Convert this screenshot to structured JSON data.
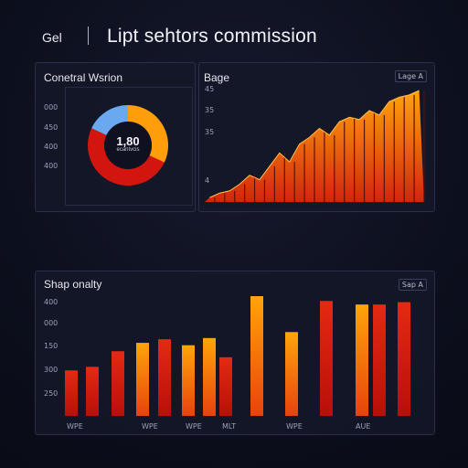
{
  "header": {
    "brand": "Gel",
    "title": "Lipt sehtors commission"
  },
  "panel_donut": {
    "title": "Conetral Wsrion",
    "ticks": [
      "000",
      "450",
      "400",
      "400"
    ],
    "center_value": "1,80",
    "center_label": "ecantvcis"
  },
  "panel_area": {
    "title": "Bage",
    "badge": "Lage A",
    "ticks": [
      "45",
      "35",
      "35",
      "4"
    ]
  },
  "panel_bars": {
    "title": "Shap onalty",
    "badge": "Sap A",
    "ticks": [
      "400",
      "000",
      "150",
      "300",
      "250"
    ],
    "xlabels": [
      "WPE",
      "WPE",
      "WPE",
      "MLT",
      "WPE",
      "AUE"
    ]
  },
  "colors": {
    "orange": "#ff9d0a",
    "red": "#d2160f",
    "blue": "#6aa8f0",
    "panel_border": "#2a2e48"
  },
  "chart_data": [
    {
      "type": "pie",
      "title": "Conetral Wsrion",
      "slices": [
        {
          "label": "orange",
          "value": 32,
          "color": "#ff9d0a"
        },
        {
          "label": "red",
          "value": 50,
          "color": "#d2160f"
        },
        {
          "label": "blue",
          "value": 18,
          "color": "#6aa8f0"
        }
      ],
      "center_value": "1,80"
    },
    {
      "type": "area",
      "title": "Bage",
      "ylim": [
        0,
        50
      ],
      "values": [
        2,
        4,
        5,
        8,
        12,
        10,
        16,
        22,
        18,
        26,
        29,
        33,
        30,
        36,
        38,
        37,
        41,
        39,
        45,
        47,
        48,
        50
      ]
    },
    {
      "type": "bar",
      "title": "Shap onalty",
      "ylim": [
        0,
        100
      ],
      "values": [
        38,
        41,
        54,
        61,
        64,
        59,
        65,
        49,
        100,
        70,
        96,
        93,
        93,
        95
      ],
      "colors": [
        "red",
        "red",
        "red",
        "orange",
        "red",
        "orange",
        "orange",
        "red",
        "orange",
        "orange",
        "red",
        "orange",
        "red",
        "red"
      ]
    }
  ]
}
